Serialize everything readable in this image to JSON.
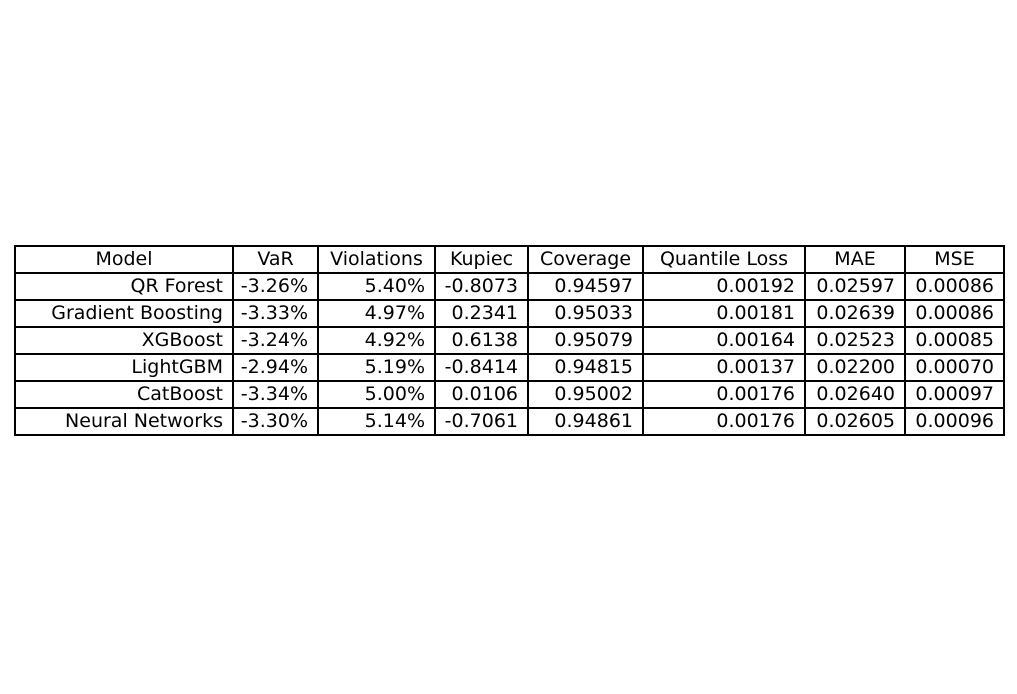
{
  "chart_data": {
    "type": "table",
    "columns": [
      "Model",
      "VaR",
      "Violations",
      "Kupiec",
      "Coverage",
      "Quantile Loss",
      "MAE",
      "MSE"
    ],
    "rows": [
      [
        "QR Forest",
        "-3.26%",
        "5.40%",
        "-0.8073",
        "0.94597",
        "0.00192",
        "0.02597",
        "0.00086"
      ],
      [
        "Gradient Boosting",
        "-3.33%",
        "4.97%",
        "0.2341",
        "0.95033",
        "0.00181",
        "0.02639",
        "0.00086"
      ],
      [
        "XGBoost",
        "-3.24%",
        "4.92%",
        "0.6138",
        "0.95079",
        "0.00164",
        "0.02523",
        "0.00085"
      ],
      [
        "LightGBM",
        "-2.94%",
        "5.19%",
        "-0.8414",
        "0.94815",
        "0.00137",
        "0.02200",
        "0.00070"
      ],
      [
        "CatBoost",
        "-3.34%",
        "5.00%",
        "0.0106",
        "0.95002",
        "0.00176",
        "0.02640",
        "0.00097"
      ],
      [
        "Neural Networks",
        "-3.30%",
        "5.14%",
        "-0.7061",
        "0.94861",
        "0.00176",
        "0.02605",
        "0.00096"
      ]
    ]
  }
}
